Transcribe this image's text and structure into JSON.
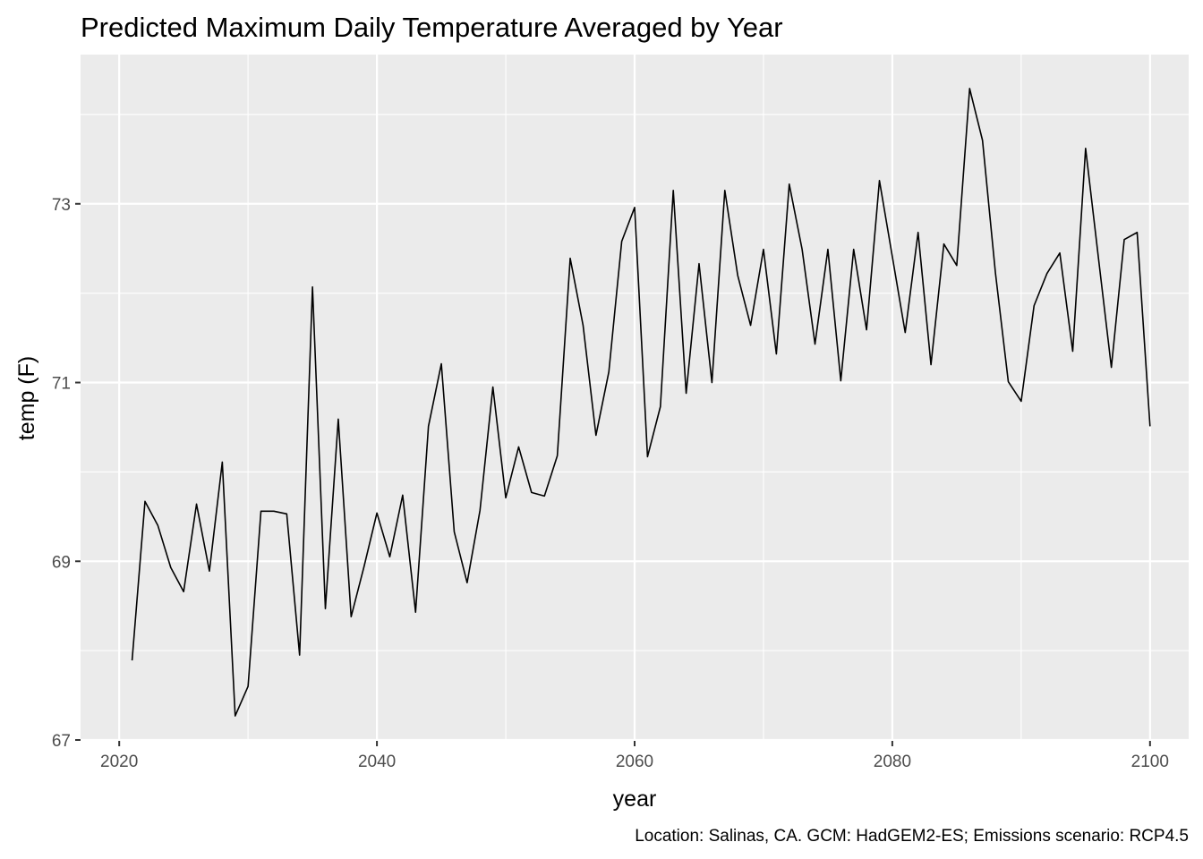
{
  "chart_data": {
    "type": "line",
    "title": "Predicted Maximum Daily Temperature Averaged by Year",
    "xlabel": "year",
    "ylabel": "temp (F)",
    "caption": "Location: Salinas, CA. GCM: HadGEM2-ES; Emissions scenario: RCP4.5",
    "xlim": [
      2017.0,
      2103.0
    ],
    "ylim": [
      66.99,
      74.67
    ],
    "x_ticks": [
      2020,
      2040,
      2060,
      2080,
      2100
    ],
    "x_tick_labels": [
      "2020",
      "2040",
      "2060",
      "2080",
      "2100"
    ],
    "y_ticks": [
      67,
      69,
      71,
      73
    ],
    "y_tick_labels": [
      "67",
      "69",
      "71",
      "73"
    ],
    "grid": true,
    "panel_background": "#ebebeb",
    "line_color": "#000000",
    "x": [
      2021,
      2022,
      2023,
      2024,
      2025,
      2026,
      2027,
      2028,
      2029,
      2030,
      2031,
      2032,
      2033,
      2034,
      2035,
      2036,
      2037,
      2038,
      2039,
      2040,
      2041,
      2042,
      2043,
      2044,
      2045,
      2046,
      2047,
      2048,
      2049,
      2050,
      2051,
      2052,
      2053,
      2054,
      2055,
      2056,
      2057,
      2058,
      2059,
      2060,
      2061,
      2062,
      2063,
      2064,
      2065,
      2066,
      2067,
      2068,
      2069,
      2070,
      2071,
      2072,
      2073,
      2074,
      2075,
      2076,
      2077,
      2078,
      2079,
      2080,
      2081,
      2082,
      2083,
      2084,
      2085,
      2086,
      2087,
      2088,
      2089,
      2090,
      2091,
      2092,
      2093,
      2094,
      2095,
      2096,
      2097,
      2098,
      2099,
      2100
    ],
    "y": [
      67.89,
      69.67,
      69.4,
      68.93,
      68.66,
      69.64,
      68.89,
      70.11,
      67.27,
      67.6,
      69.56,
      69.56,
      69.53,
      67.95,
      72.07,
      68.47,
      70.59,
      68.38,
      68.94,
      69.54,
      69.05,
      69.74,
      68.43,
      70.51,
      71.21,
      69.33,
      68.76,
      69.57,
      70.95,
      69.71,
      70.28,
      69.77,
      69.73,
      70.18,
      72.39,
      71.64,
      70.41,
      71.12,
      72.58,
      72.96,
      70.17,
      70.73,
      73.15,
      70.88,
      72.33,
      71.0,
      73.15,
      72.2,
      71.64,
      72.49,
      71.32,
      73.22,
      72.49,
      71.43,
      72.49,
      71.02,
      72.49,
      71.59,
      73.26,
      72.41,
      71.56,
      72.68,
      71.2,
      72.55,
      72.31,
      74.29,
      73.71,
      72.23,
      71.01,
      70.79,
      71.86,
      72.22,
      72.45,
      71.35,
      73.62,
      72.39,
      71.17,
      72.6,
      72.68,
      70.51
    ]
  }
}
